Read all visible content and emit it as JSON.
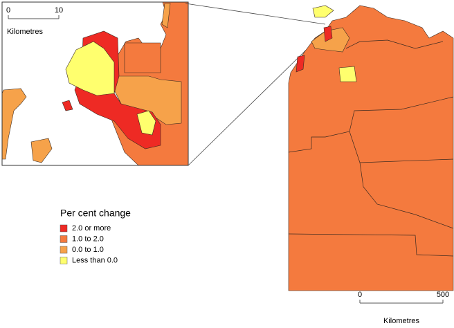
{
  "inset_scale": {
    "ticks": [
      0,
      10
    ],
    "unit": "Kilometres"
  },
  "legend": {
    "title": "Per cent change",
    "items": [
      {
        "label": "2.0 or more",
        "color": "#ee2a24"
      },
      {
        "label": "1.0 to 2.0",
        "color": "#f47a3e"
      },
      {
        "label": "0.0 to 1.0",
        "color": "#f6a24a"
      },
      {
        "label": "Less than 0.0",
        "color": "#ffff6e"
      }
    ]
  },
  "main_scale": {
    "ticks": [
      0,
      500
    ],
    "unit": "Kilometres"
  }
}
